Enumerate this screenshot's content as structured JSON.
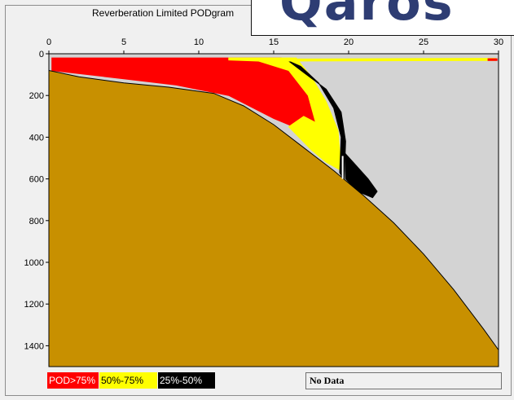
{
  "window": {
    "title": "Reverberation Limited PODgram"
  },
  "overlay": {
    "text": "Qaros"
  },
  "legend": {
    "red_label": "POD>75%",
    "yellow_label": "50%-75%",
    "black_label": "25%-50%",
    "no_data_label": "No Data"
  },
  "colors": {
    "background": "#d3d3d3",
    "seabed": "#c89000",
    "pod_high": "#ff0000",
    "pod_mid": "#ffff00",
    "pod_low": "#000000"
  },
  "chart_data": {
    "type": "heatmap",
    "title": "Reverberation Limited PODgram",
    "xlabel": "",
    "ylabel": "",
    "xlim": [
      0,
      30
    ],
    "ylim": [
      0,
      1500
    ],
    "y_inverted": true,
    "xticks": [
      0,
      5,
      10,
      15,
      20,
      25,
      30
    ],
    "yticks": [
      0,
      200,
      400,
      600,
      800,
      1000,
      1200,
      1400
    ],
    "grid": false,
    "legend_position": "bottom-left",
    "seabed_profile": [
      {
        "x": 0,
        "y": 80
      },
      {
        "x": 2,
        "y": 110
      },
      {
        "x": 5,
        "y": 140
      },
      {
        "x": 8,
        "y": 160
      },
      {
        "x": 11,
        "y": 190
      },
      {
        "x": 13,
        "y": 250
      },
      {
        "x": 15,
        "y": 340
      },
      {
        "x": 17,
        "y": 450
      },
      {
        "x": 19,
        "y": 560
      },
      {
        "x": 21,
        "y": 680
      },
      {
        "x": 23,
        "y": 810
      },
      {
        "x": 25,
        "y": 960
      },
      {
        "x": 27,
        "y": 1130
      },
      {
        "x": 29,
        "y": 1320
      },
      {
        "x": 30,
        "y": 1420
      }
    ],
    "regions": [
      {
        "name": "POD>75%",
        "color": "#ff0000",
        "polygon": [
          [
            0.2,
            20
          ],
          [
            15.5,
            20
          ],
          [
            16.5,
            100
          ],
          [
            17.5,
            200
          ],
          [
            18.3,
            320
          ],
          [
            18.5,
            420
          ],
          [
            17.5,
            400
          ],
          [
            16,
            340
          ],
          [
            15,
            310
          ],
          [
            12,
            200
          ],
          [
            8.5,
            150
          ],
          [
            5,
            120
          ],
          [
            0.2,
            80
          ]
        ]
      },
      {
        "name": "50%-75%",
        "color": "#ffff00",
        "polygon": [
          [
            12,
            20
          ],
          [
            16.5,
            20
          ],
          [
            17.5,
            110
          ],
          [
            18.5,
            230
          ],
          [
            19.3,
            370
          ],
          [
            19.5,
            560
          ],
          [
            18.5,
            520
          ],
          [
            17.5,
            460
          ],
          [
            16,
            350
          ],
          [
            17,
            300
          ],
          [
            17.8,
            330
          ],
          [
            17.3,
            200
          ],
          [
            16,
            80
          ],
          [
            14,
            35
          ],
          [
            12,
            30
          ]
        ]
      },
      {
        "name": "25%-50%",
        "color": "#000000",
        "polygon": [
          [
            16,
            35
          ],
          [
            17,
            90
          ],
          [
            18.5,
            170
          ],
          [
            19.5,
            280
          ],
          [
            19.8,
            420
          ],
          [
            19.7,
            610
          ],
          [
            19.4,
            570
          ],
          [
            19.5,
            400
          ],
          [
            19,
            260
          ],
          [
            18,
            140
          ],
          [
            16.8,
            60
          ]
        ]
      },
      {
        "name": "25%-50%",
        "color": "#000000",
        "polygon": [
          [
            19.8,
            480
          ],
          [
            20.3,
            520
          ],
          [
            21.3,
            600
          ],
          [
            21.9,
            660
          ],
          [
            21.6,
            690
          ],
          [
            20.6,
            660
          ],
          [
            19.8,
            600
          ]
        ]
      },
      {
        "name": "50%-75%",
        "color": "#ffff00",
        "polygon": [
          [
            16,
            25
          ],
          [
            29.8,
            22
          ],
          [
            29.8,
            32
          ],
          [
            16,
            35
          ]
        ]
      },
      {
        "name": "POD>75%",
        "color": "#ff0000",
        "polygon": [
          [
            29.3,
            24
          ],
          [
            29.9,
            24
          ],
          [
            29.9,
            32
          ],
          [
            29.3,
            32
          ]
        ]
      }
    ],
    "gap_segment": {
      "x": 19.6,
      "y_start": 490,
      "y_end": 600
    }
  }
}
